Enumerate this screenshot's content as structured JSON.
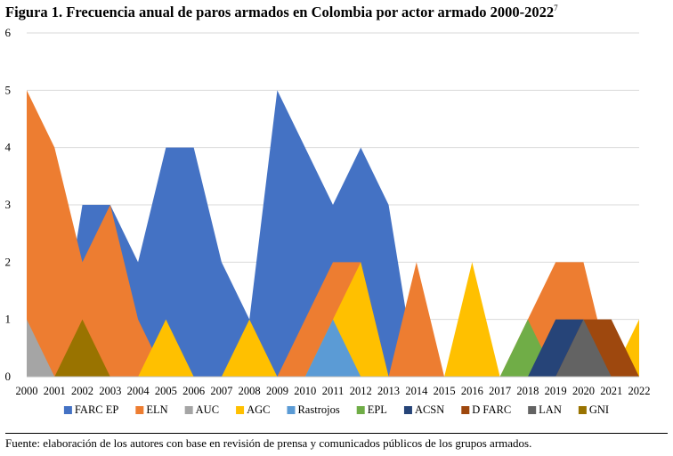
{
  "figure": {
    "title": "Figura 1. Frecuencia anual de paros armados en Colombia por actor armado 2000-2022",
    "footnote_mark": "7",
    "source": "Fuente: elaboración de los autores con base en revisión de prensa y comunicados públicos de los grupos armados."
  },
  "chart_data": {
    "type": "area",
    "title": "Figura 1. Frecuencia anual de paros armados en Colombia por actor armado 2000-2022",
    "xlabel": "",
    "ylabel": "",
    "x": [
      "2000",
      "2001",
      "2002",
      "2003",
      "2004",
      "2005",
      "2006",
      "2007",
      "2008",
      "2009",
      "2010",
      "2011",
      "2012",
      "2013",
      "2014",
      "2015",
      "2016",
      "2017",
      "2018",
      "2019",
      "2020",
      "2021",
      "2022"
    ],
    "ylim": [
      0,
      6
    ],
    "yticks": [
      "0",
      "1",
      "2",
      "3",
      "4",
      "5",
      "6"
    ],
    "grid": true,
    "legend_position": "bottom",
    "series": [
      {
        "name": "FARC EP",
        "color": "#4472C4",
        "values": [
          0,
          0,
          3,
          3,
          2,
          4,
          4,
          2,
          1,
          5,
          4,
          3,
          4,
          3,
          0,
          0,
          0,
          0,
          0,
          0,
          0,
          0,
          0
        ]
      },
      {
        "name": "ELN",
        "color": "#ED7D31",
        "values": [
          5,
          4,
          2,
          3,
          1,
          0,
          0,
          0,
          0,
          0,
          1,
          2,
          2,
          0,
          2,
          0,
          0,
          0,
          1,
          2,
          2,
          0,
          0
        ]
      },
      {
        "name": "AUC",
        "color": "#A5A5A5",
        "values": [
          1,
          0,
          0,
          0,
          0,
          0,
          0,
          0,
          0,
          0,
          0,
          0,
          0,
          0,
          0,
          0,
          0,
          0,
          0,
          0,
          0,
          0,
          0
        ]
      },
      {
        "name": "AGC",
        "color": "#FFC000",
        "values": [
          0,
          0,
          0,
          0,
          0,
          1,
          0,
          0,
          1,
          0,
          0,
          1,
          2,
          0,
          0,
          0,
          2,
          0,
          0,
          0,
          0,
          0,
          1
        ]
      },
      {
        "name": "Rastrojos",
        "color": "#5B9BD5",
        "values": [
          0,
          0,
          0,
          0,
          0,
          0,
          0,
          0,
          0,
          0,
          0,
          1,
          0,
          0,
          0,
          0,
          0,
          0,
          0,
          0,
          0,
          0,
          0
        ]
      },
      {
        "name": "EPL",
        "color": "#70AD47",
        "values": [
          0,
          0,
          0,
          0,
          0,
          0,
          0,
          0,
          0,
          0,
          0,
          0,
          0,
          0,
          0,
          0,
          0,
          0,
          1,
          0,
          0,
          0,
          0
        ]
      },
      {
        "name": "ACSN",
        "color": "#264478",
        "values": [
          0,
          0,
          0,
          0,
          0,
          0,
          0,
          0,
          0,
          0,
          0,
          0,
          0,
          0,
          0,
          0,
          0,
          0,
          0,
          1,
          1,
          0,
          0
        ]
      },
      {
        "name": "D FARC",
        "color": "#9E480E",
        "values": [
          0,
          0,
          0,
          0,
          0,
          0,
          0,
          0,
          0,
          0,
          0,
          0,
          0,
          0,
          0,
          0,
          0,
          0,
          0,
          0,
          1,
          1,
          0
        ]
      },
      {
        "name": "LAN",
        "color": "#636363",
        "values": [
          0,
          0,
          0,
          0,
          0,
          0,
          0,
          0,
          0,
          0,
          0,
          0,
          0,
          0,
          0,
          0,
          0,
          0,
          0,
          0,
          1,
          0,
          0
        ]
      },
      {
        "name": "GNI",
        "color": "#997300",
        "values": [
          0,
          0,
          1,
          0,
          0,
          0,
          0,
          0,
          0,
          0,
          0,
          0,
          0,
          0,
          0,
          0,
          0,
          0,
          0,
          0,
          0,
          0,
          0
        ]
      }
    ]
  }
}
